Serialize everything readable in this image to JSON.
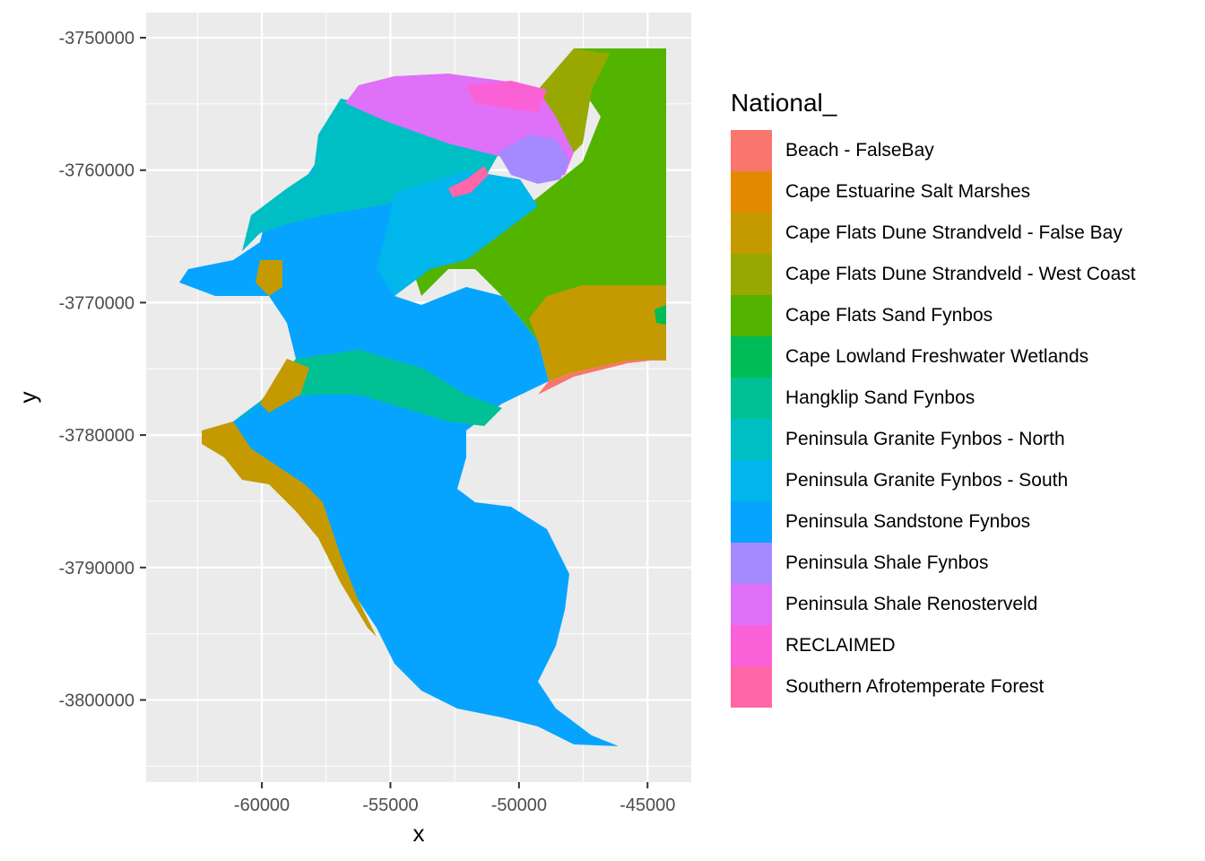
{
  "chart_data": {
    "type": "raster-map",
    "xlabel": "x",
    "ylabel": "y",
    "x_ticks": [
      -60000,
      -55000,
      -50000,
      -45000
    ],
    "x_tick_labels": [
      "-60000",
      "-55000",
      "-50000",
      "-45000"
    ],
    "y_ticks": [
      -3750000,
      -3760000,
      -3770000,
      -3780000,
      -3790000,
      -3800000
    ],
    "y_tick_labels": [
      "-3750000",
      "-3760000",
      "-3770000",
      "-3780000",
      "-3790000",
      "-3800000"
    ],
    "xlim": [
      -64500,
      -43300
    ],
    "ylim": [
      -3806200,
      -3748100
    ],
    "grid": true,
    "legend_position": "right",
    "legend": {
      "title": "National_",
      "entries": [
        {
          "label": "Beach - FalseBay",
          "color": "#F8766D"
        },
        {
          "label": "Cape Estuarine Salt Marshes",
          "color": "#E38900"
        },
        {
          "label": "Cape Flats Dune Strandveld - False Bay",
          "color": "#C49A00"
        },
        {
          "label": "Cape Flats Dune Strandveld - West Coast",
          "color": "#99A800"
        },
        {
          "label": "Cape Flats Sand Fynbos",
          "color": "#53B400"
        },
        {
          "label": "Cape Lowland Freshwater Wetlands",
          "color": "#00BC56"
        },
        {
          "label": "Hangklip Sand Fynbos",
          "color": "#00C094"
        },
        {
          "label": "Peninsula Granite Fynbos - North",
          "color": "#00BFC4"
        },
        {
          "label": "Peninsula Granite Fynbos - South",
          "color": "#00B6EB"
        },
        {
          "label": "Peninsula Sandstone Fynbos",
          "color": "#06A4FF"
        },
        {
          "label": "Peninsula Shale Fynbos",
          "color": "#A58AFF"
        },
        {
          "label": "Peninsula Shale Renosterveld",
          "color": "#DF70F8"
        },
        {
          "label": "RECLAIMED",
          "color": "#FB61D7"
        },
        {
          "label": "Southern Afrotemperate Forest",
          "color": "#FF66A8"
        }
      ]
    },
    "panel_background": "#EBEBEB"
  }
}
